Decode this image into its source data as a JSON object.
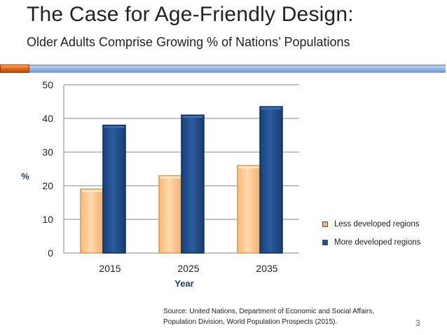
{
  "slide": {
    "title": "The Case for Age-Friendly Design:",
    "subtitle": "Older Adults Comprise Growing % of Nations’ Populations",
    "source_line1": "Source: United Nations, Department of Economic and Social Affairs,",
    "source_line2": "Population Division, World Population Prospects (2015).",
    "page_number": "3"
  },
  "chart_data": {
    "type": "bar",
    "categories": [
      "2015",
      "2025",
      "2035"
    ],
    "series": [
      {
        "name": "Less developed regions",
        "values": [
          19,
          23,
          26
        ],
        "color": "#fbc78e"
      },
      {
        "name": "More developed regions",
        "values": [
          38,
          41,
          43.5
        ],
        "color": "#1f4e8c"
      }
    ],
    "title": "",
    "xlabel": "Year",
    "ylabel": "%",
    "ylim": [
      0,
      50
    ],
    "yticks": [
      0,
      10,
      20,
      30,
      40,
      50
    ],
    "grid": true,
    "legend": "right"
  }
}
